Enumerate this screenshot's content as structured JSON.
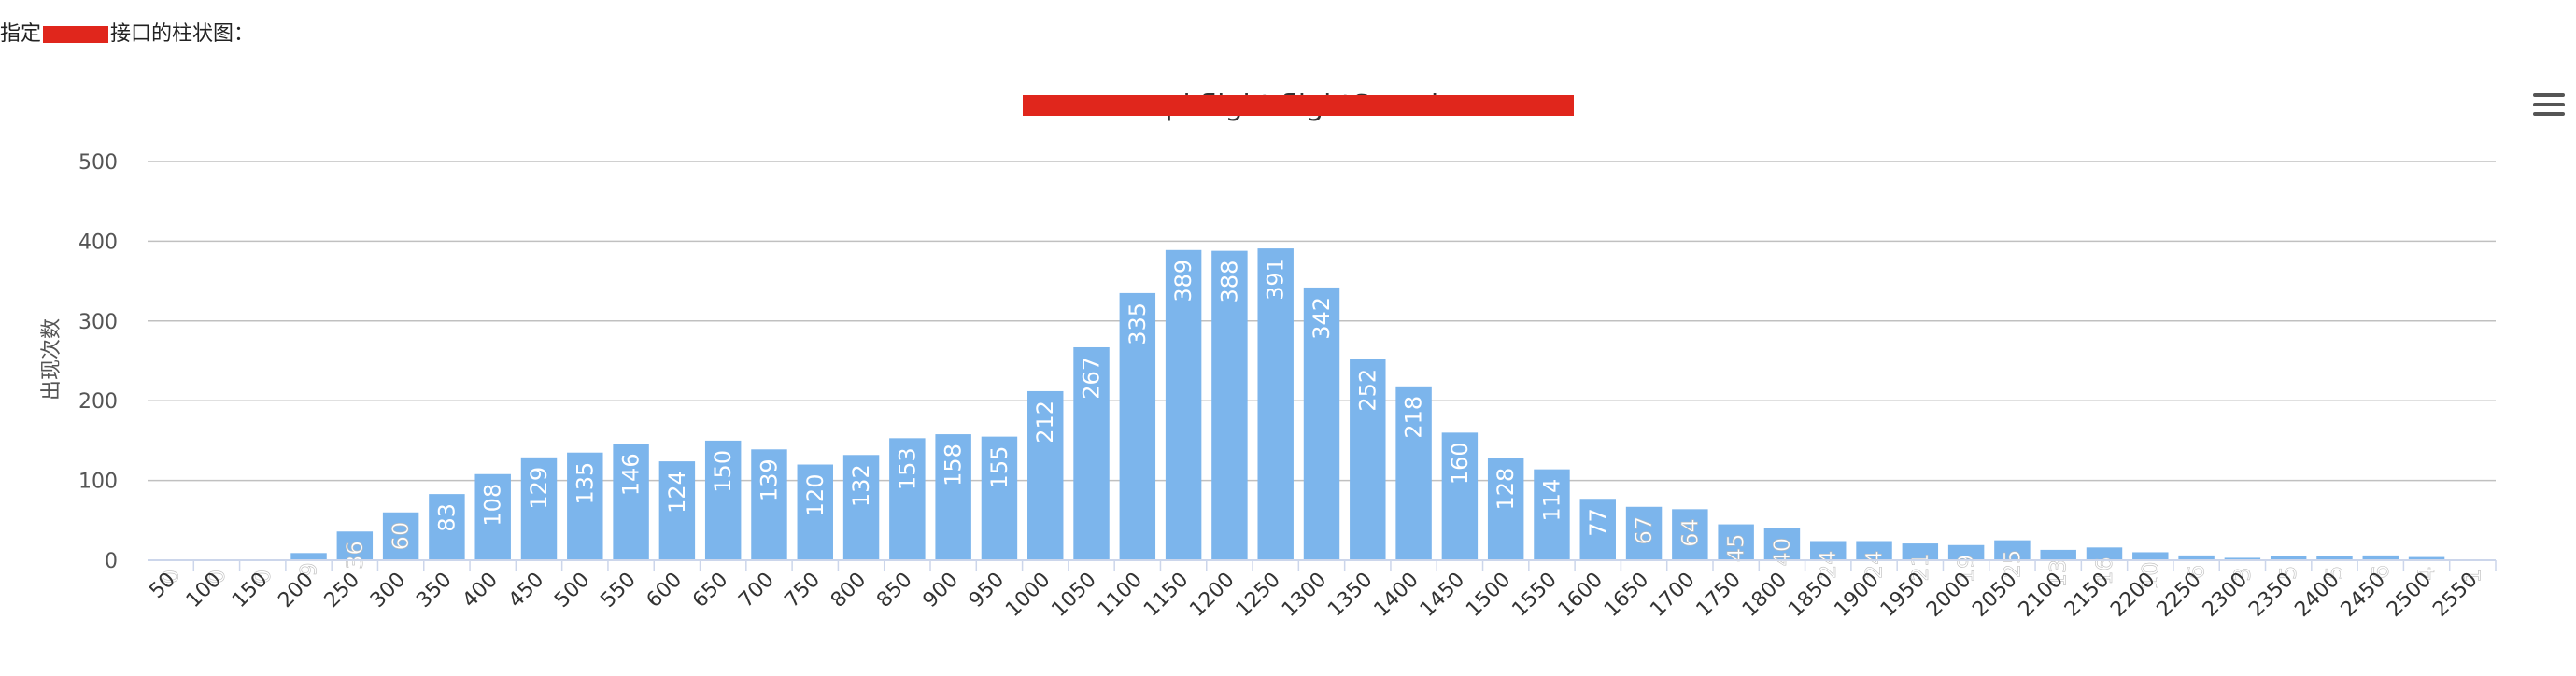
{
  "heading": {
    "prefix": "指定",
    "suffix": "接口的柱状图："
  },
  "chart_data": {
    "type": "bar",
    "title": "api.flight.flightSearch",
    "ylabel": "出现次数",
    "xlabel": "",
    "ylim": [
      0,
      500
    ],
    "yticks": [
      0,
      100,
      200,
      300,
      400,
      500
    ],
    "grid": true,
    "color": "#7cb5ec",
    "categories": [
      "50",
      "100",
      "150",
      "200",
      "250",
      "300",
      "350",
      "400",
      "450",
      "500",
      "550",
      "600",
      "650",
      "700",
      "750",
      "800",
      "850",
      "900",
      "950",
      "1000",
      "1050",
      "1100",
      "1150",
      "1200",
      "1250",
      "1300",
      "1350",
      "1400",
      "1450",
      "1500",
      "1550",
      "1600",
      "1650",
      "1700",
      "1750",
      "1800",
      "1850",
      "1900",
      "1950",
      "2000",
      "2050",
      "2100",
      "2150",
      "2200",
      "2250",
      "2300",
      "2350",
      "2400",
      "2450",
      "2500",
      "2550"
    ],
    "values": [
      0,
      0,
      0,
      9,
      36,
      60,
      83,
      108,
      129,
      135,
      146,
      124,
      150,
      139,
      120,
      132,
      153,
      158,
      155,
      212,
      267,
      335,
      389,
      388,
      391,
      342,
      252,
      218,
      160,
      128,
      114,
      77,
      67,
      64,
      45,
      40,
      24,
      24,
      21,
      19,
      25,
      13,
      16,
      10,
      6,
      3,
      5,
      5,
      6,
      4,
      1
    ]
  }
}
